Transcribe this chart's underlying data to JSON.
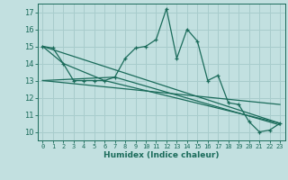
{
  "title": "",
  "xlabel": "Humidex (Indice chaleur)",
  "xlim": [
    -0.5,
    23.5
  ],
  "ylim": [
    9.5,
    17.5
  ],
  "yticks": [
    10,
    11,
    12,
    13,
    14,
    15,
    16,
    17
  ],
  "xticks": [
    0,
    1,
    2,
    3,
    4,
    5,
    6,
    7,
    8,
    9,
    10,
    11,
    12,
    13,
    14,
    15,
    16,
    17,
    18,
    19,
    20,
    21,
    22,
    23
  ],
  "bg_color": "#c2e0e0",
  "line_color": "#1a6b5a",
  "grid_color": "#a8cccc",
  "line1_x": [
    0,
    1,
    2,
    3,
    4,
    5,
    6,
    7,
    8,
    9,
    10,
    11,
    12,
    13,
    14,
    15,
    16,
    17,
    18,
    19,
    20,
    21,
    22,
    23
  ],
  "line1_y": [
    15.0,
    14.9,
    14.0,
    13.0,
    13.0,
    13.0,
    13.0,
    13.2,
    14.3,
    14.9,
    15.0,
    15.4,
    17.2,
    14.3,
    16.0,
    15.3,
    13.0,
    13.3,
    11.7,
    11.6,
    10.6,
    10.0,
    10.1,
    10.5
  ],
  "line2_x": [
    0,
    23
  ],
  "line2_y": [
    15.0,
    10.5
  ],
  "line3_x": [
    0,
    7,
    23
  ],
  "line3_y": [
    13.0,
    13.2,
    10.4
  ],
  "line4_x": [
    0,
    2,
    6,
    23
  ],
  "line4_y": [
    15.0,
    14.0,
    13.0,
    10.5
  ],
  "line5_x": [
    0,
    23
  ],
  "line5_y": [
    13.0,
    11.6
  ]
}
